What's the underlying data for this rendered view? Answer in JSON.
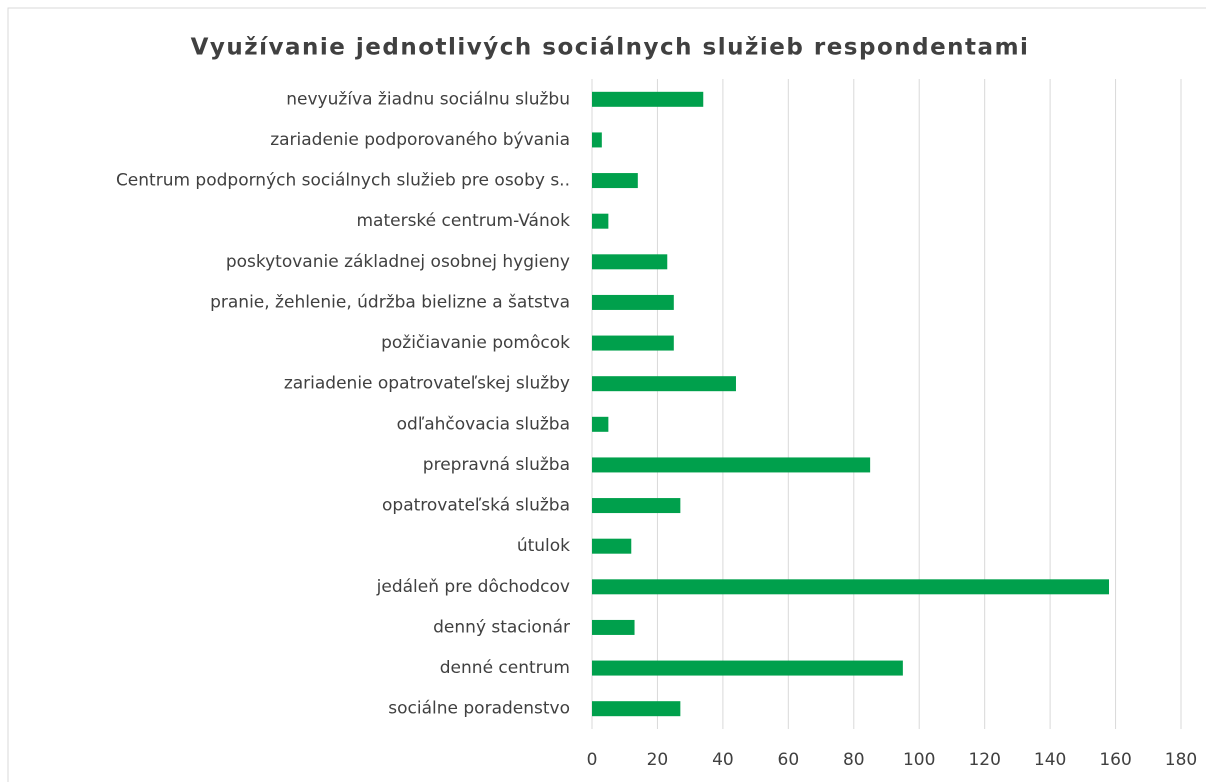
{
  "chart_data": {
    "type": "bar",
    "orientation": "horizontal",
    "title": "Využívanie jednotlivých sociálnych služieb  respondentami",
    "categories": [
      "nevyužíva žiadnu sociálnu službu",
      "zariadenie podporovaného bývania",
      "Centrum podporných sociálnych služieb pre osoby s..",
      "materské centrum-Vánok",
      "poskytovanie základnej osobnej hygieny",
      "pranie, žehlenie, údržba bielizne a šatstva",
      "požičiavanie pomôcok",
      "zariadenie opatrovateľskej služby",
      "odľahčovacia služba",
      "prepravná služba",
      "opatrovateľská služba",
      "útulok",
      "jedáleň pre dôchodcov",
      "denný stacionár",
      "denné centrum",
      "sociálne poradenstvo"
    ],
    "values": [
      34,
      3,
      14,
      5,
      23,
      25,
      25,
      44,
      5,
      85,
      27,
      12,
      158,
      13,
      95,
      27
    ],
    "color": "#00a04c",
    "xlim": [
      0,
      180
    ],
    "xticks": [
      0,
      20,
      40,
      60,
      80,
      100,
      120,
      140,
      160,
      180
    ],
    "grid": true
  }
}
